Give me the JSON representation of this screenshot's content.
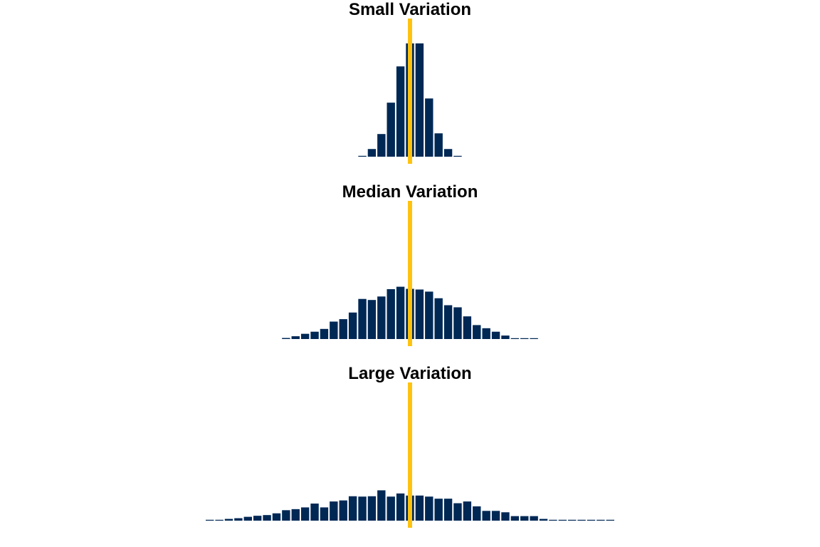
{
  "chart_data": [
    {
      "type": "bar",
      "title": "Small Variation",
      "bar_color": "#002855",
      "reference_line_color": "#FFC20E",
      "reference_line_x": 0,
      "xlim": [
        -43,
        43
      ],
      "ylim": [
        0,
        38
      ],
      "axes": "none",
      "grid": false,
      "bin_width": 1,
      "x": [
        -5,
        -4,
        -3,
        -2,
        -1,
        0,
        1,
        2,
        3,
        4,
        5
      ],
      "values": [
        0.2,
        2.2,
        6.5,
        15.5,
        25.9,
        32.5,
        32.5,
        16.7,
        6.7,
        2.2,
        0.2
      ]
    },
    {
      "type": "bar",
      "title": "Median Variation",
      "bar_color": "#002855",
      "reference_line_color": "#FFC20E",
      "reference_line_x": 0,
      "xlim": [
        -43,
        43
      ],
      "ylim": [
        0,
        38
      ],
      "axes": "none",
      "grid": false,
      "bin_width": 1,
      "x": [
        -13,
        -12,
        -11,
        -10,
        -9,
        -8,
        -7,
        -6,
        -5,
        -4,
        -3,
        -2,
        -1,
        0,
        1,
        2,
        3,
        4,
        5,
        6,
        7,
        8,
        9,
        10,
        11,
        12,
        13
      ],
      "values": [
        0.3,
        0.8,
        1.5,
        2.1,
        2.9,
        5.0,
        5.7,
        7.6,
        11.5,
        11.2,
        12.2,
        14.3,
        15.0,
        14.4,
        14.2,
        13.6,
        11.7,
        9.7,
        9.1,
        6.5,
        4.0,
        3.1,
        2.1,
        1.0,
        0.2,
        0.2,
        0
      ]
    },
    {
      "type": "bar",
      "title": "Large Variation",
      "bar_color": "#002855",
      "reference_line_color": "#FFC20E",
      "reference_line_x": 0,
      "xlim": [
        -43,
        43
      ],
      "ylim": [
        0,
        38
      ],
      "axes": "none",
      "grid": false,
      "bin_width": 1,
      "x": [
        -21,
        -20,
        -19,
        -18,
        -17,
        -16,
        -15,
        -14,
        -13,
        -12,
        -11,
        -10,
        -9,
        -8,
        -7,
        -6,
        -5,
        -4,
        -3,
        -2,
        -1,
        0,
        1,
        2,
        3,
        4,
        5,
        6,
        7,
        8,
        9,
        10,
        11,
        12,
        13,
        14,
        15,
        16,
        17,
        18,
        19,
        20,
        21
      ],
      "values": [
        0.2,
        0.2,
        0.5,
        0.7,
        1.1,
        1.4,
        1.6,
        2.1,
        3.0,
        3.3,
        3.8,
        4.9,
        3.8,
        5.5,
        5.8,
        7.0,
        6.9,
        7.0,
        8.7,
        6.9,
        7.8,
        7.2,
        7.2,
        6.9,
        6.3,
        6.3,
        5.0,
        5.5,
        4.1,
        2.8,
        2.8,
        2.4,
        1.3,
        1.3,
        1.3,
        0.5,
        0.2,
        0.2,
        0,
        0,
        0,
        0,
        0
      ]
    }
  ]
}
